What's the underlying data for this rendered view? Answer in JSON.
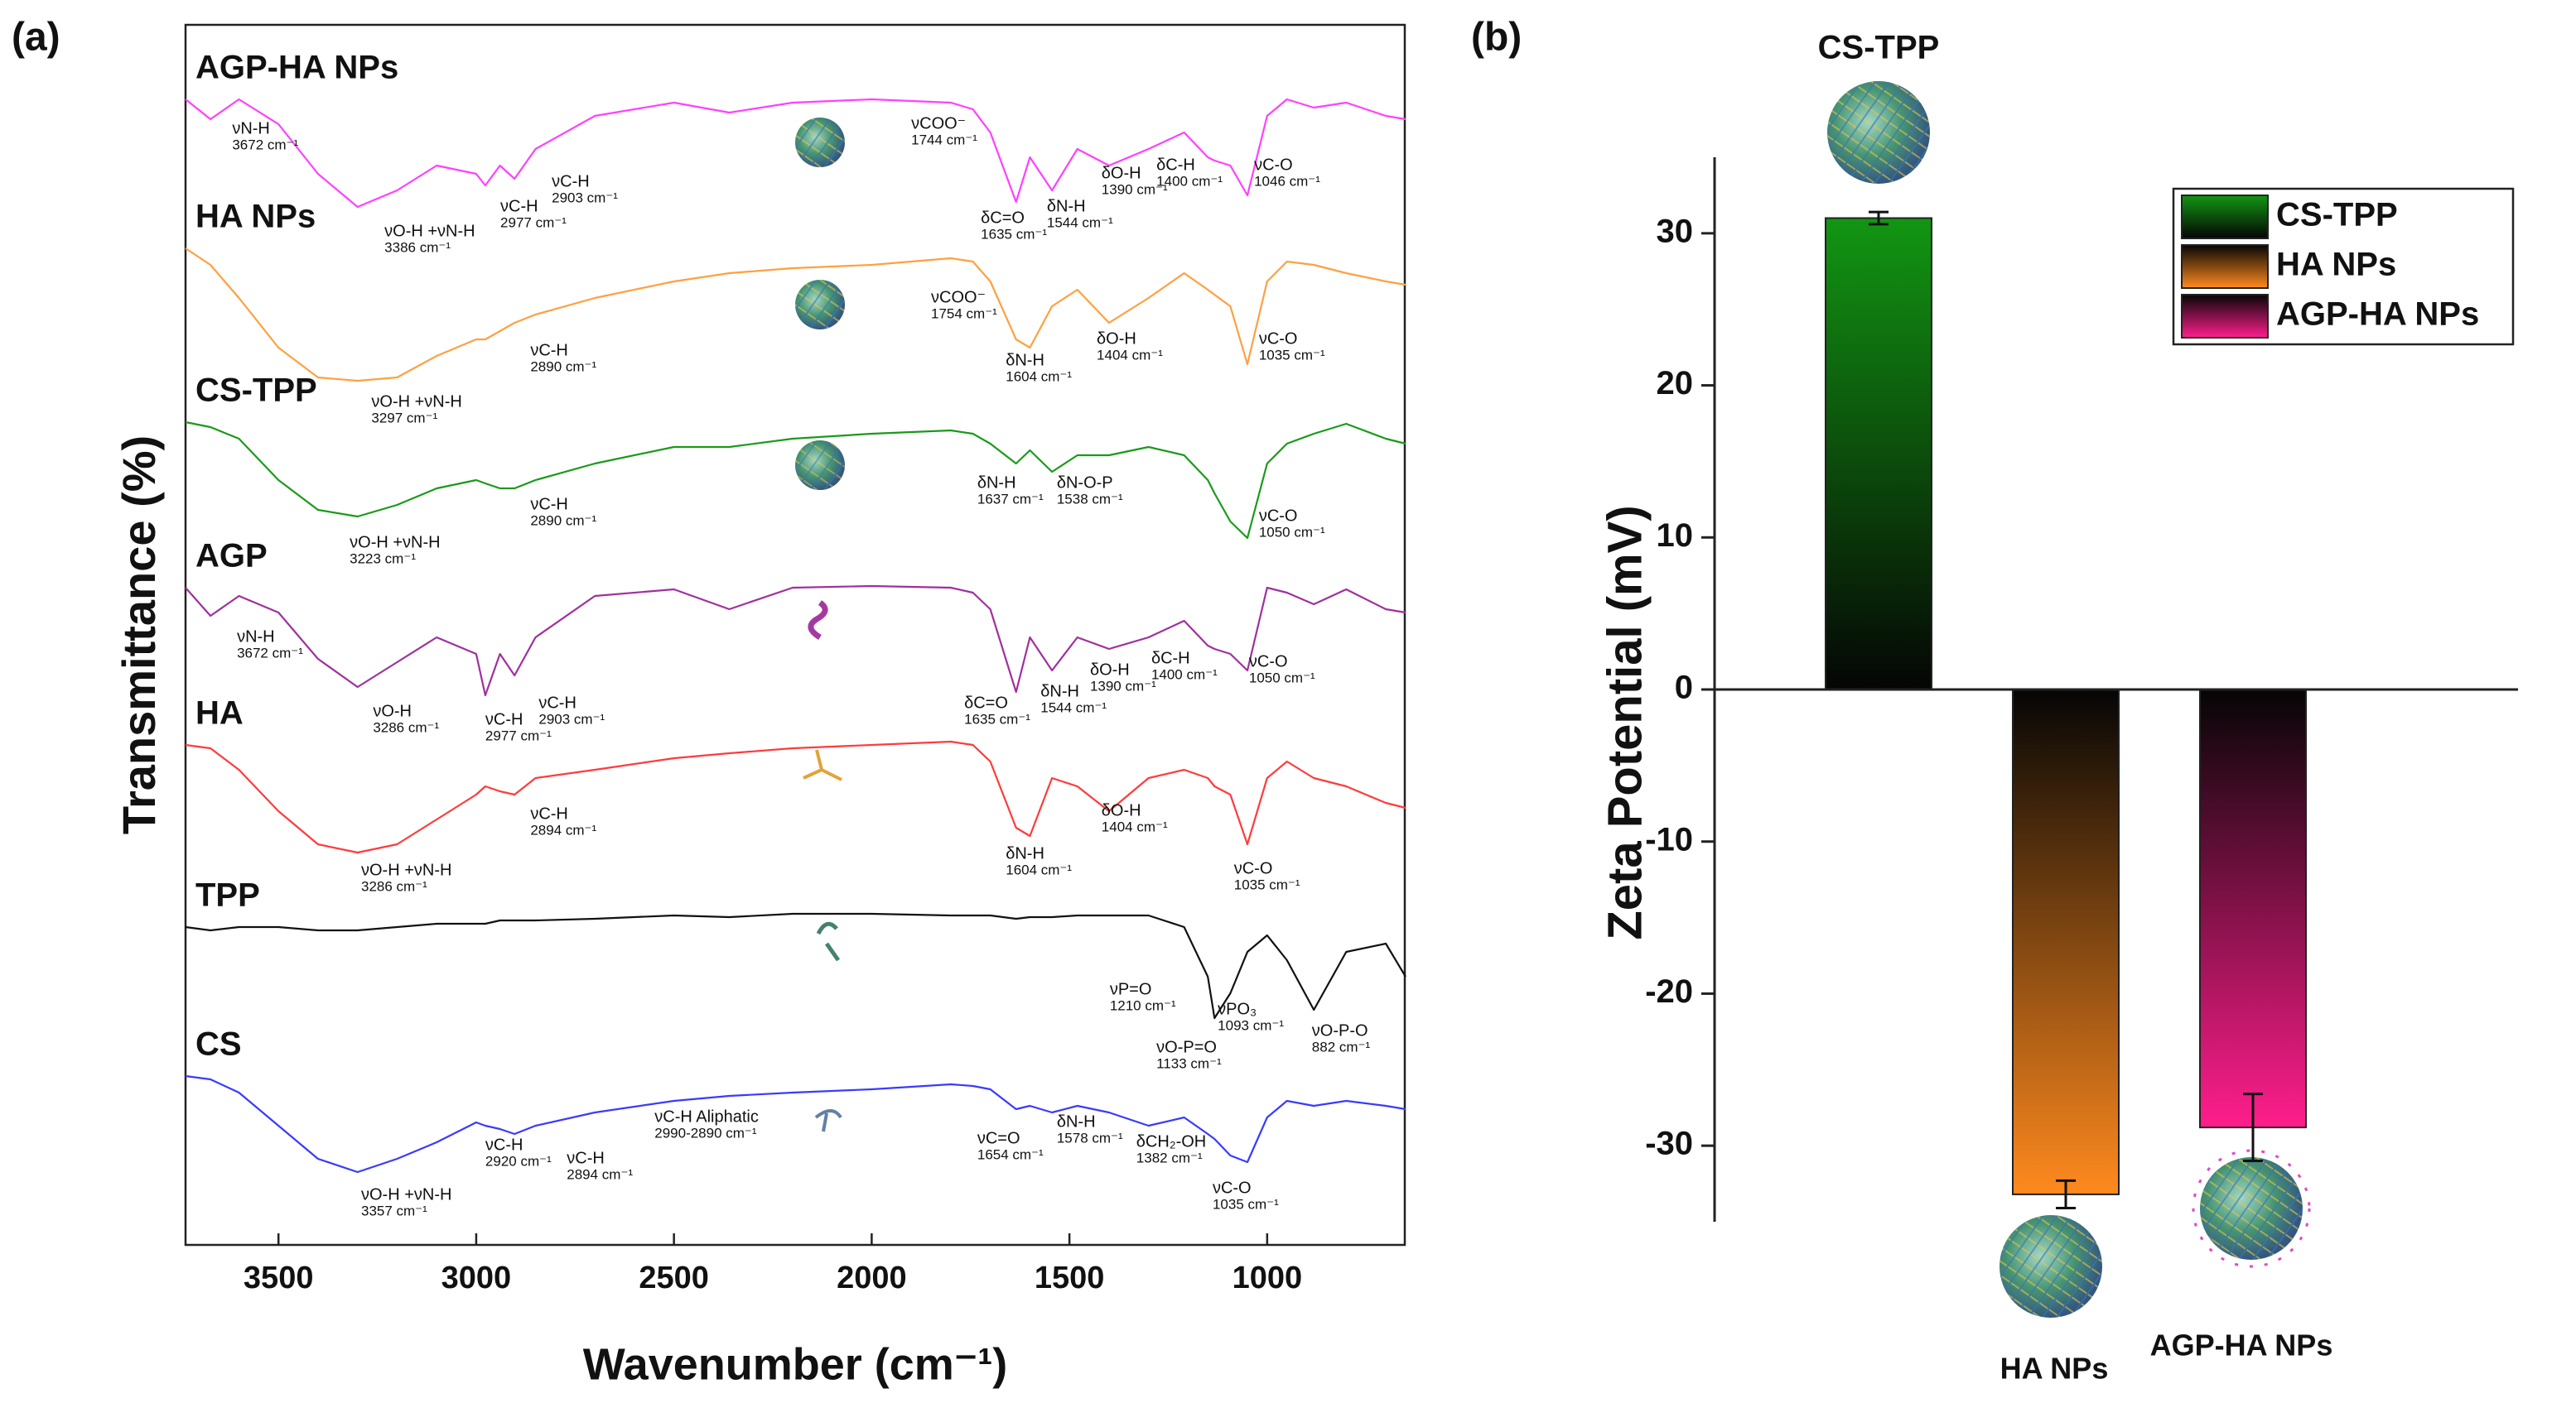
{
  "chart_data": [
    {
      "type": "line",
      "panel_label": "(a)",
      "x_label": "Wavenumber (cm⁻¹)",
      "y_label": "Transmittance (%)",
      "xlim": [
        3735,
        652
      ],
      "ylim": [
        4.8,
        78.5
      ],
      "xticks": [
        3500,
        3000,
        2500,
        2000,
        1500,
        1000
      ],
      "x": [
        3735,
        3672,
        3600,
        3500,
        3400,
        3300,
        3200,
        3100,
        3000,
        2977,
        2940,
        2903,
        2850,
        2700,
        2500,
        2360,
        2200,
        2000,
        1800,
        1744,
        1700,
        1635,
        1600,
        1544,
        1480,
        1400,
        1300,
        1210,
        1150,
        1133,
        1093,
        1050,
        1000,
        950,
        882,
        800,
        700,
        650
      ],
      "series": [
        {
          "name": "AGP-HA NPs",
          "color": "#ff40ff",
          "values": [
            74,
            72.8,
            74,
            72.5,
            69.5,
            67.5,
            68.5,
            70,
            69.5,
            68.8,
            70,
            69.2,
            71,
            73,
            73.8,
            73.2,
            73.8,
            74,
            73.8,
            73.4,
            72,
            67.8,
            70.5,
            68.5,
            71,
            70,
            71,
            72,
            70.5,
            70.3,
            70,
            68.2,
            73,
            74,
            73.5,
            73.8,
            73,
            72.8
          ]
        },
        {
          "name": "HA NPs",
          "color": "#ffa040",
          "values": [
            65,
            64,
            62,
            59,
            57.2,
            57,
            57.2,
            58.5,
            59.5,
            59.5,
            60,
            60.5,
            61,
            62,
            63,
            63.5,
            63.8,
            64,
            64.4,
            64.2,
            63,
            59.5,
            59,
            61.5,
            62.5,
            60.5,
            62,
            63.5,
            62.5,
            62.2,
            61.5,
            58,
            63,
            64.2,
            64,
            63.5,
            63,
            62.8
          ]
        },
        {
          "name": "CS-TPP",
          "color": "#1a9a1a",
          "values": [
            54.5,
            54.2,
            53.5,
            51,
            49.2,
            48.8,
            49.5,
            50.5,
            51,
            50.8,
            50.5,
            50.5,
            51,
            52,
            53,
            53,
            53.5,
            53.8,
            54,
            53.8,
            53.2,
            52,
            52.8,
            51.5,
            52.5,
            52.5,
            53,
            52.5,
            51,
            50.2,
            48.5,
            47.5,
            52,
            53.2,
            53.8,
            54.4,
            53.5,
            53.2
          ]
        },
        {
          "name": "AGP",
          "color": "#a0309c",
          "values": [
            44.5,
            42.8,
            44,
            43,
            40.2,
            38.5,
            40,
            41.5,
            40.5,
            38,
            40.5,
            39.2,
            41.5,
            44,
            44.4,
            43.2,
            44.5,
            44.6,
            44.5,
            44.2,
            43.2,
            38.2,
            41.5,
            39.5,
            41.5,
            40.8,
            41.5,
            42.5,
            41,
            40.8,
            40.5,
            39.5,
            44.5,
            44.2,
            43.5,
            44.4,
            43.2,
            43
          ]
        },
        {
          "name": "HA",
          "color": "#ff3b3b",
          "values": [
            35,
            34.8,
            33.5,
            31,
            29,
            28.5,
            29,
            30.5,
            32,
            32.5,
            32.2,
            32,
            33,
            33.5,
            34.2,
            34.5,
            34.8,
            35,
            35.2,
            35,
            34,
            30,
            29.5,
            33,
            32.5,
            31,
            33,
            33.5,
            33,
            32.5,
            32,
            29,
            33,
            34,
            33,
            32.5,
            31.5,
            31.2
          ]
        },
        {
          "name": "TPP",
          "color": "#111111",
          "values": [
            24,
            23.8,
            24,
            24,
            23.8,
            23.8,
            24,
            24.2,
            24.2,
            24.2,
            24.4,
            24.4,
            24.4,
            24.5,
            24.7,
            24.6,
            24.8,
            24.8,
            24.7,
            24.7,
            24.7,
            24.5,
            24.6,
            24.6,
            24.7,
            24.7,
            24.7,
            24,
            21,
            18.5,
            20,
            22.5,
            23.5,
            22,
            19,
            22.5,
            23,
            21
          ]
        },
        {
          "name": "CS",
          "color": "#3a3aff",
          "values": [
            15,
            14.8,
            14,
            12,
            10,
            9.2,
            10,
            11,
            12.2,
            12,
            11.8,
            11.5,
            12,
            12.8,
            13.5,
            13.8,
            14,
            14.2,
            14.5,
            14.4,
            14.2,
            13,
            13.2,
            12.8,
            13.2,
            12.8,
            12,
            12.5,
            11.5,
            11.2,
            10.2,
            9.8,
            12.5,
            13.5,
            13.2,
            13.5,
            13.2,
            13
          ]
        }
      ],
      "annotations": [
        {
          "label": "νN-H",
          "text": "3672 cm⁻¹",
          "x": 3617,
          "y": 72.2
        },
        {
          "label": "νO-H +νN-H",
          "text": "3386 cm⁻¹",
          "x": 3232,
          "y": 66
        },
        {
          "label": "νC-H",
          "text": "2977 cm⁻¹",
          "x": 2939,
          "y": 67.5
        },
        {
          "label": "νC-H",
          "text": "2903 cm⁻¹",
          "x": 2809,
          "y": 69
        },
        {
          "label": "νCOO⁻",
          "text": "1744 cm⁻¹",
          "x": 1900,
          "y": 72.5
        },
        {
          "label": "δC=O",
          "text": "1635 cm⁻¹",
          "x": 1724,
          "y": 66.8
        },
        {
          "label": "δN-H",
          "text": "1544 cm⁻¹",
          "x": 1557,
          "y": 67.5
        },
        {
          "label": "δO-H",
          "text": "1390 cm⁻¹",
          "x": 1419,
          "y": 69.5
        },
        {
          "label": "δC-H",
          "text": "1400 cm⁻¹",
          "x": 1280,
          "y": 70
        },
        {
          "label": "νC-O",
          "text": "1046 cm⁻¹",
          "x": 1033,
          "y": 70
        },
        {
          "label": "νO-H +νN-H",
          "text": "3297 cm⁻¹",
          "x": 3265,
          "y": 55.7
        },
        {
          "label": "νC-H",
          "text": "2890 cm⁻¹",
          "x": 2863,
          "y": 58.8
        },
        {
          "label": "νCOO⁻",
          "text": "1754 cm⁻¹",
          "x": 1850,
          "y": 62,
          "color": "#ff7a1a"
        },
        {
          "label": "δN-H",
          "text": "1604 cm⁻¹",
          "x": 1661,
          "y": 58.2
        },
        {
          "label": "δO-H",
          "text": "1404 cm⁻¹",
          "x": 1431,
          "y": 59.5
        },
        {
          "label": "νC-O",
          "text": "1035 cm⁻¹",
          "x": 1021,
          "y": 59.5
        },
        {
          "label": "νO-H +νN-H",
          "text": "3223 cm⁻¹",
          "x": 3320,
          "y": 47.2
        },
        {
          "label": "νC-H",
          "text": "2890 cm⁻¹",
          "x": 2863,
          "y": 49.5
        },
        {
          "label": "δN-H",
          "text": "1637 cm⁻¹",
          "x": 1733,
          "y": 50.8,
          "color": "#3aa03a"
        },
        {
          "label": "δN-O-P",
          "text": "1538 cm⁻¹",
          "x": 1532,
          "y": 50.8,
          "color": "#3aa03a"
        },
        {
          "label": "νC-O",
          "text": "1050 cm⁻¹",
          "x": 1021,
          "y": 48.8
        },
        {
          "label": "νN-H",
          "text": "3672 cm⁻¹",
          "x": 3605,
          "y": 41.5
        },
        {
          "label": "νO-H",
          "text": "3286 cm⁻¹",
          "x": 3261,
          "y": 37
        },
        {
          "label": "νC-H",
          "text": "2977 cm⁻¹",
          "x": 2977,
          "y": 36.5
        },
        {
          "label": "νC-H",
          "text": "2903 cm⁻¹",
          "x": 2842,
          "y": 37.5
        },
        {
          "label": "δC=O",
          "text": "1635 cm⁻¹",
          "x": 1766,
          "y": 37.5
        },
        {
          "label": "δN-H",
          "text": "1544 cm⁻¹",
          "x": 1573,
          "y": 38.2
        },
        {
          "label": "δO-H",
          "text": "1390 cm⁻¹",
          "x": 1448,
          "y": 39.5
        },
        {
          "label": "δC-H",
          "text": "1400 cm⁻¹",
          "x": 1293,
          "y": 40.2
        },
        {
          "label": "νC-O",
          "text": "1050 cm⁻¹",
          "x": 1046,
          "y": 40
        },
        {
          "label": "νC-H",
          "text": "2894 cm⁻¹",
          "x": 2863,
          "y": 30.8
        },
        {
          "label": "νO-H +νN-H",
          "text": "3286 cm⁻¹",
          "x": 3291,
          "y": 27.4
        },
        {
          "label": "δN-H",
          "text": "1604 cm⁻¹",
          "x": 1661,
          "y": 28.4
        },
        {
          "label": "δO-H",
          "text": "1404 cm⁻¹",
          "x": 1419,
          "y": 31
        },
        {
          "label": "νC-O",
          "text": "1035 cm⁻¹",
          "x": 1084,
          "y": 27.5
        },
        {
          "label": "νP=O",
          "text": "1210 cm⁻¹",
          "x": 1398,
          "y": 20.2
        },
        {
          "label": "νO-P=O",
          "text": "1133 cm⁻¹",
          "x": 1280,
          "y": 16.7
        },
        {
          "label": "νPO₃",
          "text": "1093 cm⁻¹",
          "x": 1125,
          "y": 19
        },
        {
          "label": "νO-P-O",
          "text": "882 cm⁻¹",
          "x": 887,
          "y": 17.7
        },
        {
          "label": "νO-H +νN-H",
          "text": "3357 cm⁻¹",
          "x": 3291,
          "y": 7.8
        },
        {
          "label": "νC-H",
          "text": "2920 cm⁻¹",
          "x": 2977,
          "y": 10.8
        },
        {
          "label": "νC-H",
          "text": "2894 cm⁻¹",
          "x": 2771,
          "y": 10
        },
        {
          "label": "νC-H Aliphatic",
          "text": "2990-2890 cm⁻¹",
          "x": 2549,
          "y": 12.5
        },
        {
          "label": "νC=O",
          "text": "1654 cm⁻¹",
          "x": 1733,
          "y": 11.2
        },
        {
          "label": "δN-H",
          "text": "1578 cm⁻¹",
          "x": 1532,
          "y": 12.2
        },
        {
          "label": "δCH₂-OH",
          "text": "1382 cm⁻¹",
          "x": 1331,
          "y": 11
        },
        {
          "label": "νC-O",
          "text": "1035 cm⁻¹",
          "x": 1138,
          "y": 8.2
        }
      ]
    },
    {
      "type": "bar",
      "panel_label": "(b)",
      "y_label": "Zeta Potential (mV)",
      "categories": [
        "CS-TPP",
        "HA NPs",
        "AGP-HA NPs"
      ],
      "values": [
        31,
        -33.2,
        -28.8
      ],
      "errors": [
        0.4,
        0.9,
        2.2
      ],
      "colors": [
        "#129612",
        "#ff8a1e",
        "#ff1e8c"
      ],
      "ylim": [
        -35,
        35
      ],
      "yticks": [
        -30,
        -20,
        -10,
        0,
        10,
        20,
        30
      ],
      "legend": "upper right"
    }
  ]
}
